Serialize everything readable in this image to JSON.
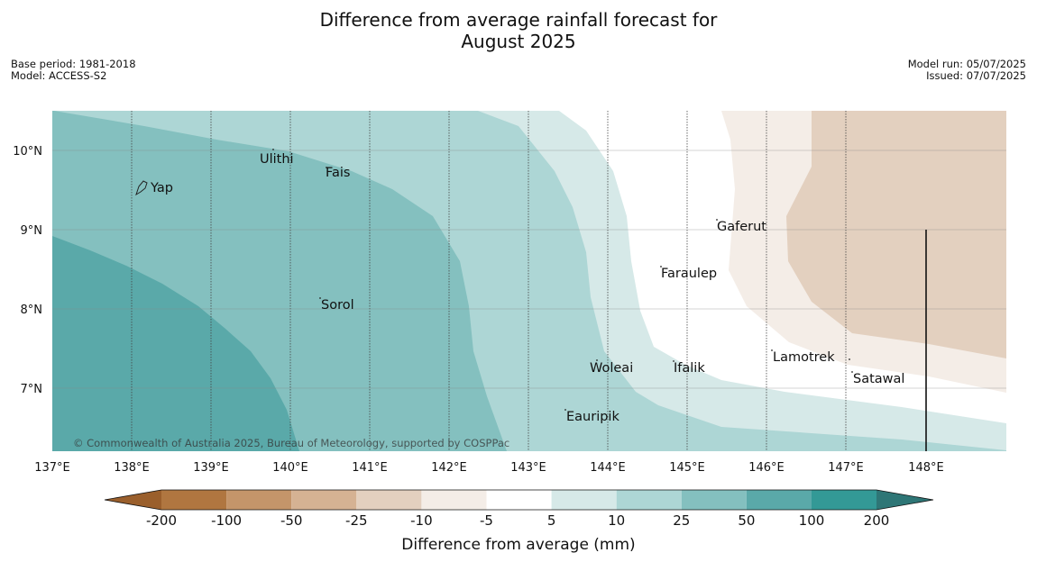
{
  "title": {
    "line1": "Difference from average rainfall forecast for",
    "line2": "August 2025"
  },
  "meta_left": {
    "base_period": "Base period: 1981-2018",
    "model": "Model: ACCESS-S2"
  },
  "meta_right": {
    "model_run": "Model run: 05/07/2025",
    "issued": "Issued: 07/07/2025"
  },
  "map": {
    "lon_labels": [
      "137°E",
      "138°E",
      "139°E",
      "140°E",
      "141°E",
      "142°E",
      "143°E",
      "144°E",
      "145°E",
      "146°E",
      "147°E",
      "148°E"
    ],
    "lat_labels": [
      "10°N",
      "9°N",
      "8°N",
      "7°N"
    ],
    "places": [
      "Ulithi",
      "Fais",
      "Yap",
      "Gaferut",
      "Faraulep",
      "Sorol",
      "Lamotrek",
      "Woleai",
      "Ifalik",
      "Satawal",
      "Eauripik"
    ],
    "copyright": "© Commonwealth of Australia 2025, Bureau of Meteorology, supported by COSPPac"
  },
  "colorbar": {
    "ticks": [
      "-200",
      "-100",
      "-50",
      "-25",
      "-10",
      "-5",
      "5",
      "10",
      "25",
      "50",
      "100",
      "200"
    ],
    "colors": [
      "#9a5f2c",
      "#b07640",
      "#c4956a",
      "#d5b293",
      "#e3d0bf",
      "#f4ede7",
      "#ffffff",
      "#d6e9e8",
      "#add6d5",
      "#84c0bf",
      "#5aa9a9",
      "#339996",
      "#2e7676"
    ],
    "label": "Difference from average (mm)"
  }
}
